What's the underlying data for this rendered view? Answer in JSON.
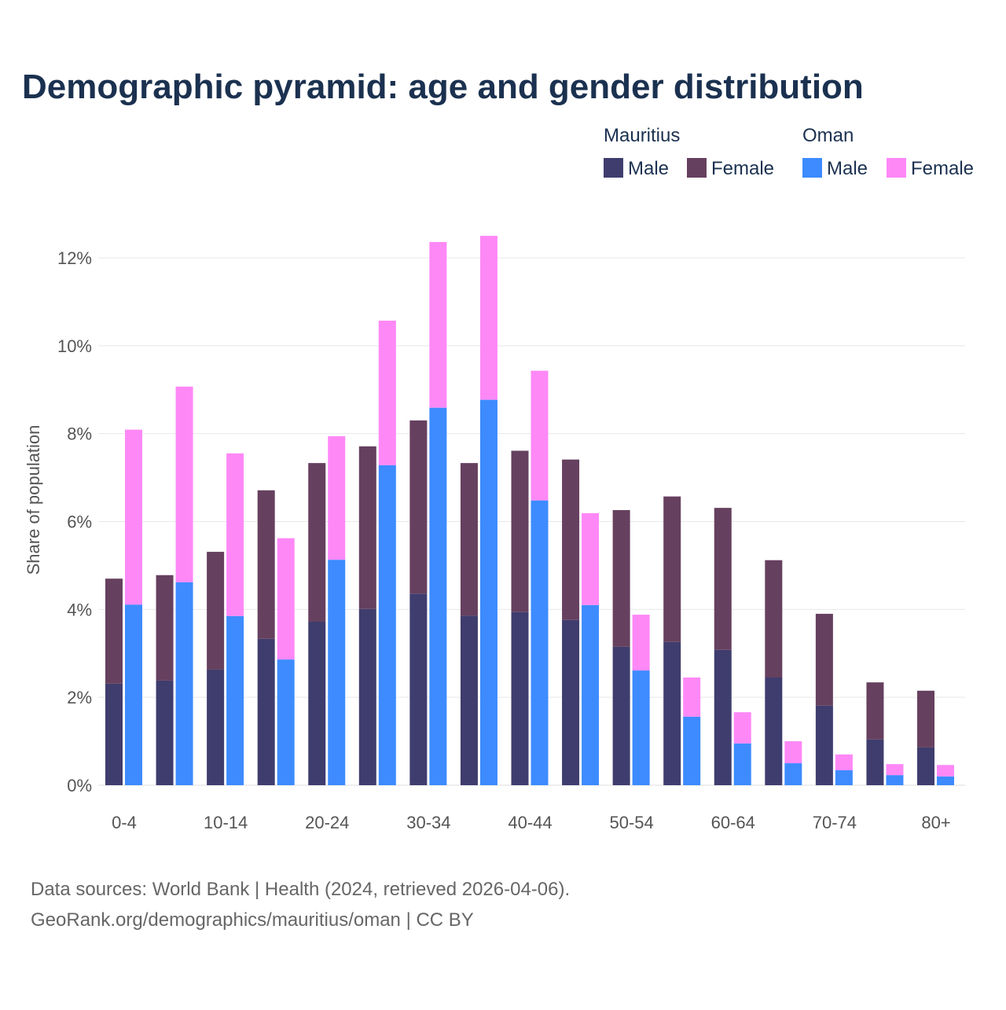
{
  "chart_data": {
    "type": "bar",
    "stacked": true,
    "title": "Demographic pyramid: age and gender distribution",
    "xlabel": "",
    "ylabel": "Share of population",
    "ylim": [
      0,
      12.5
    ],
    "yticks": [
      0,
      2,
      4,
      6,
      8,
      10,
      12
    ],
    "ytick_labels": [
      "0%",
      "2%",
      "4%",
      "6%",
      "8%",
      "10%",
      "12%"
    ],
    "grid": true,
    "legend_position": "top-right",
    "categories": [
      "0-4",
      "5-9",
      "10-14",
      "15-19",
      "20-24",
      "25-29",
      "30-34",
      "35-39",
      "40-44",
      "45-49",
      "50-54",
      "55-59",
      "60-64",
      "65-69",
      "70-74",
      "75-79",
      "80+"
    ],
    "xtick_labels": [
      "0-4",
      "",
      "10-14",
      "",
      "20-24",
      "",
      "30-34",
      "",
      "40-44",
      "",
      "50-54",
      "",
      "60-64",
      "",
      "70-74",
      "",
      "80+"
    ],
    "groups": [
      {
        "name": "Mauritius",
        "series": [
          {
            "name": "Male",
            "color": "#3f3d6e",
            "values": [
              2.31,
              2.38,
              2.63,
              3.33,
              3.72,
              4.01,
              4.36,
              3.86,
              3.94,
              3.76,
              3.15,
              3.26,
              3.08,
              2.45,
              1.81,
              1.04,
              0.86
            ]
          },
          {
            "name": "Female",
            "color": "#66405f",
            "values": [
              2.39,
              2.4,
              2.68,
              3.38,
              3.61,
              3.7,
              3.94,
              3.47,
              3.67,
              3.65,
              3.11,
              3.31,
              3.23,
              2.67,
              2.09,
              1.3,
              1.29
            ]
          }
        ]
      },
      {
        "name": "Oman",
        "series": [
          {
            "name": "Male",
            "color": "#3d8bff",
            "values": [
              4.11,
              4.62,
              3.85,
              2.86,
              5.13,
              7.28,
              8.59,
              8.77,
              6.48,
              4.1,
              2.61,
              1.56,
              0.95,
              0.5,
              0.34,
              0.23,
              0.2
            ]
          },
          {
            "name": "Female",
            "color": "#ff88f7",
            "values": [
              3.98,
              4.45,
              3.7,
              2.76,
              2.81,
              3.29,
              3.77,
              3.73,
              2.95,
              2.09,
              1.27,
              0.89,
              0.71,
              0.5,
              0.36,
              0.25,
              0.26
            ]
          }
        ]
      }
    ],
    "source_line1": "Data sources: World Bank | Health (2024, retrieved 2026-04-06).",
    "source_line2": "GeoRank.org/demographics/mauritius/oman | CC BY"
  }
}
